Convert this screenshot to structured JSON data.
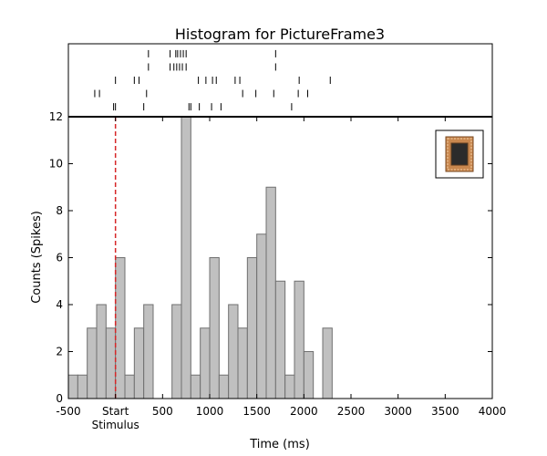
{
  "chart_data": {
    "type": "bar",
    "title": "Histogram for PictureFrame3",
    "xlabel": "Time (ms)",
    "ylabel": "Counts (Spikes)",
    "xlim": [
      -500,
      4000
    ],
    "ylim": [
      0,
      12
    ],
    "grid": false,
    "x_tick_values": [
      -500,
      0,
      500,
      1000,
      1500,
      2000,
      2500,
      3000,
      3500,
      4000
    ],
    "x_tick_labels": [
      "-500",
      "Start",
      "500",
      "1000",
      "1500",
      "2000",
      "2500",
      "3000",
      "3500",
      "4000"
    ],
    "x_tick_sublabel": "Stimulus",
    "y_tick_values": [
      0,
      2,
      4,
      6,
      8,
      10,
      12
    ],
    "y_tick_labels": [
      "0",
      "2",
      "4",
      "6",
      "8",
      "10",
      "12"
    ],
    "stimulus_marker_x": 0,
    "stimulus_marker_color": "#d62728",
    "bar_fill": "#c0c0c0",
    "bar_edge": "#707070",
    "bin_width": 100,
    "bins": [
      {
        "x": -500,
        "count": 1
      },
      {
        "x": -400,
        "count": 1
      },
      {
        "x": -300,
        "count": 3
      },
      {
        "x": -200,
        "count": 4
      },
      {
        "x": -100,
        "count": 3
      },
      {
        "x": 0,
        "count": 6
      },
      {
        "x": 100,
        "count": 1
      },
      {
        "x": 200,
        "count": 3
      },
      {
        "x": 300,
        "count": 4
      },
      {
        "x": 400,
        "count": 0
      },
      {
        "x": 500,
        "count": 0
      },
      {
        "x": 600,
        "count": 4
      },
      {
        "x": 700,
        "count": 12
      },
      {
        "x": 800,
        "count": 1
      },
      {
        "x": 900,
        "count": 3
      },
      {
        "x": 1000,
        "count": 6
      },
      {
        "x": 1100,
        "count": 1
      },
      {
        "x": 1200,
        "count": 4
      },
      {
        "x": 1300,
        "count": 3
      },
      {
        "x": 1400,
        "count": 6
      },
      {
        "x": 1500,
        "count": 7
      },
      {
        "x": 1600,
        "count": 9
      },
      {
        "x": 1700,
        "count": 5
      },
      {
        "x": 1800,
        "count": 1
      },
      {
        "x": 1900,
        "count": 5
      },
      {
        "x": 2000,
        "count": 2
      },
      {
        "x": 2100,
        "count": 0
      },
      {
        "x": 2200,
        "count": 3
      }
    ],
    "raster_trials": [
      [
        350,
        580,
        640,
        660,
        690,
        720,
        750,
        1700
      ],
      [
        350,
        580,
        620,
        650,
        680,
        710,
        750,
        1700
      ],
      [
        0,
        200,
        250,
        880,
        960,
        1030,
        1070,
        1270,
        1320,
        1950,
        2280
      ],
      [
        -220,
        -170,
        330,
        1350,
        1490,
        1680,
        1940,
        2040
      ],
      [
        -20,
        0,
        300,
        780,
        800,
        890,
        1020,
        1120,
        1870
      ]
    ],
    "stimulus_icon": "picture-frame-thumbnail"
  }
}
